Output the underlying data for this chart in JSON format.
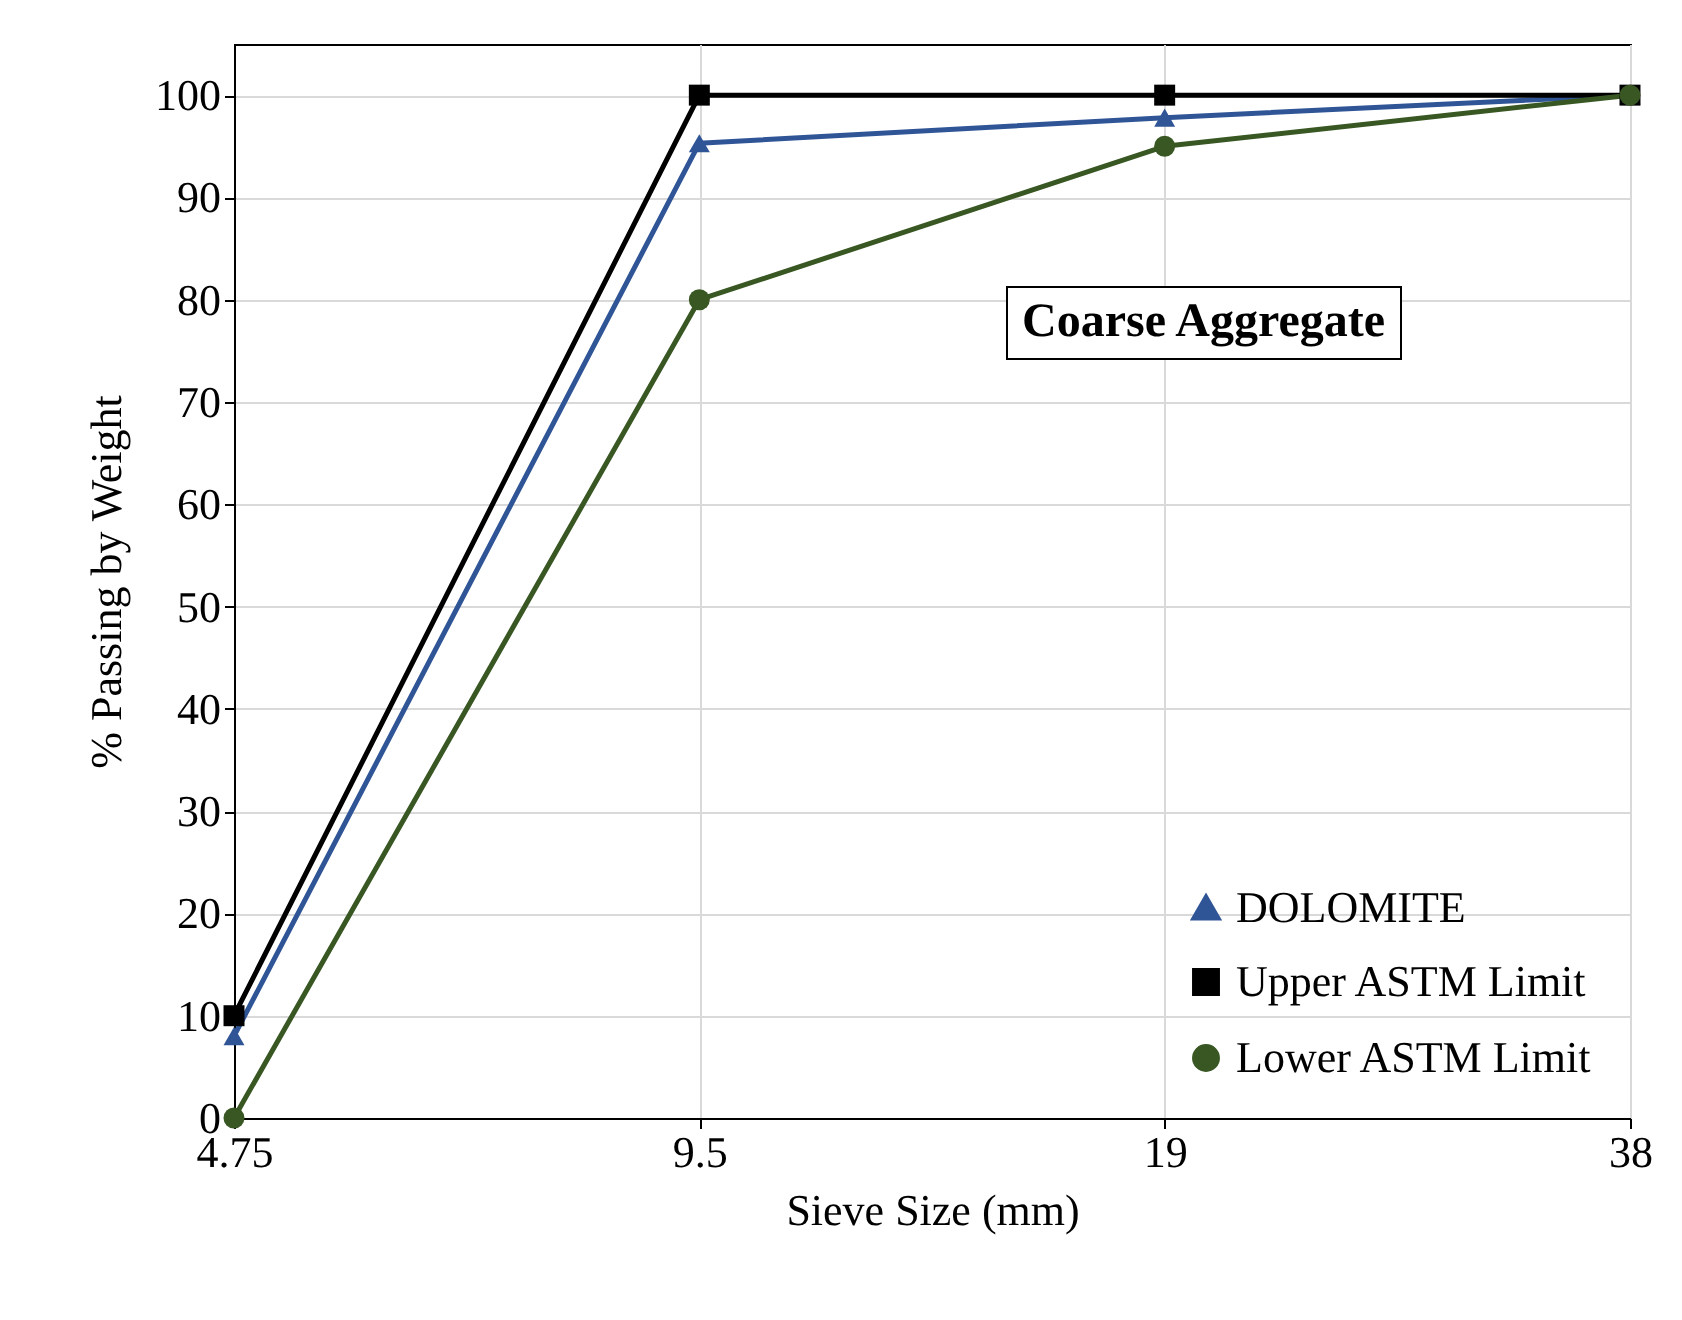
{
  "chart_data": {
    "type": "line",
    "xlabel": "Sieve Size (mm)",
    "ylabel": "% Passing by Weight",
    "annotations": [
      "Coarse Aggregate"
    ],
    "x": [
      4.75,
      9.5,
      19,
      38
    ],
    "log": "x",
    "xlim": [
      4.75,
      38
    ],
    "xticks": [
      4.75,
      9.5,
      19,
      38
    ],
    "ylim": [
      0,
      105
    ],
    "yticks": [
      0,
      10,
      20,
      30,
      40,
      50,
      60,
      70,
      80,
      90,
      100
    ],
    "grid": true,
    "legend": "bottom right",
    "line_style": "solid",
    "series": [
      {
        "name": "DOLOMITE",
        "color": "#2f5597",
        "marker": "triangle",
        "values": [
          8,
          95.3,
          97.8,
          100
        ]
      },
      {
        "name": "Upper ASTM Limit",
        "color": "#000000",
        "marker": "square",
        "values": [
          10,
          100,
          100,
          100
        ]
      },
      {
        "name": "Lower ASTM Limit",
        "color": "#385723",
        "marker": "circle",
        "values": [
          0,
          80,
          95,
          100
        ]
      }
    ]
  }
}
